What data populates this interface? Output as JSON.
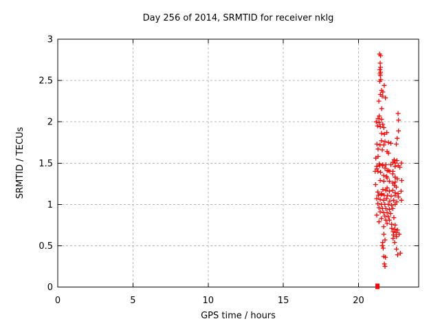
{
  "chart_data": {
    "type": "scatter",
    "title": "Day 256 of 2014, SRMTID for receiver nklg",
    "xlabel": "GPS time / hours",
    "ylabel": "SRMTID / TECUs",
    "xlim": [
      0,
      24
    ],
    "ylim": [
      0,
      3
    ],
    "xticks": [
      0,
      5,
      10,
      15,
      20
    ],
    "yticks": [
      0,
      0.5,
      1,
      1.5,
      2,
      2.5,
      3
    ],
    "grid": true,
    "legend_position": "none",
    "colors": {
      "marker": "#ff0000",
      "border": "#000000",
      "grid": "#b4b4b4",
      "background": "#ffffff",
      "text": "#000000"
    },
    "series": [
      {
        "name": "srmtid-points",
        "marker": "plus",
        "color": "#ff0000",
        "points": [
          [
            21.4,
            2.82
          ],
          [
            21.47,
            2.8
          ],
          [
            21.44,
            2.71
          ],
          [
            21.46,
            2.66
          ],
          [
            21.42,
            2.63
          ],
          [
            21.46,
            2.6
          ],
          [
            21.43,
            2.58
          ],
          [
            21.45,
            2.56
          ],
          [
            21.48,
            2.51
          ],
          [
            21.41,
            2.49
          ],
          [
            21.71,
            2.44
          ],
          [
            21.53,
            2.38
          ],
          [
            21.62,
            2.36
          ],
          [
            21.45,
            2.33
          ],
          [
            21.58,
            2.31
          ],
          [
            21.79,
            2.29
          ],
          [
            21.35,
            2.25
          ],
          [
            21.54,
            2.16
          ],
          [
            22.63,
            2.1
          ],
          [
            21.38,
            2.07
          ],
          [
            21.3,
            2.04
          ],
          [
            21.53,
            2.03
          ],
          [
            22.66,
            2.02
          ],
          [
            21.18,
            2.0
          ],
          [
            21.38,
            1.99
          ],
          [
            21.61,
            1.97
          ],
          [
            21.27,
            1.95
          ],
          [
            21.45,
            1.94
          ],
          [
            21.68,
            1.93
          ],
          [
            22.66,
            1.89
          ],
          [
            21.88,
            1.87
          ],
          [
            21.53,
            1.86
          ],
          [
            21.72,
            1.85
          ],
          [
            22.57,
            1.8
          ],
          [
            21.53,
            1.77
          ],
          [
            21.76,
            1.76
          ],
          [
            21.99,
            1.75
          ],
          [
            22.15,
            1.74
          ],
          [
            21.22,
            1.73
          ],
          [
            22.51,
            1.73
          ],
          [
            21.43,
            1.72
          ],
          [
            21.68,
            1.72
          ],
          [
            21.3,
            1.67
          ],
          [
            21.58,
            1.66
          ],
          [
            21.9,
            1.64
          ],
          [
            21.99,
            1.62
          ],
          [
            21.3,
            1.58
          ],
          [
            21.15,
            1.56
          ],
          [
            22.37,
            1.54
          ],
          [
            22.55,
            1.53
          ],
          [
            22.29,
            1.51
          ],
          [
            22.44,
            1.5
          ],
          [
            22.85,
            1.5
          ],
          [
            21.38,
            1.49
          ],
          [
            21.61,
            1.48
          ],
          [
            22.15,
            1.48
          ],
          [
            21.82,
            1.48
          ],
          [
            22.64,
            1.47
          ],
          [
            21.41,
            1.47
          ],
          [
            21.59,
            1.47
          ],
          [
            21.21,
            1.46
          ],
          [
            22.43,
            1.46
          ],
          [
            22.75,
            1.45
          ],
          [
            21.76,
            1.44
          ],
          [
            21.22,
            1.43
          ],
          [
            21.9,
            1.41
          ],
          [
            21.99,
            1.41
          ],
          [
            21.11,
            1.4
          ],
          [
            21.29,
            1.4
          ],
          [
            21.47,
            1.39
          ],
          [
            22.08,
            1.4
          ],
          [
            22.29,
            1.4
          ],
          [
            22.28,
            1.37
          ],
          [
            21.67,
            1.35
          ],
          [
            21.86,
            1.34
          ],
          [
            22.43,
            1.33
          ],
          [
            21.9,
            1.32
          ],
          [
            22.58,
            1.31
          ],
          [
            21.44,
            1.29
          ],
          [
            22.87,
            1.29
          ],
          [
            22.05,
            1.28
          ],
          [
            21.68,
            1.28
          ],
          [
            22.44,
            1.27
          ],
          [
            22.28,
            1.26
          ],
          [
            21.13,
            1.24
          ],
          [
            22.39,
            1.23
          ],
          [
            22.51,
            1.21
          ],
          [
            21.9,
            1.2
          ],
          [
            21.62,
            1.18
          ],
          [
            21.82,
            1.17
          ],
          [
            22.28,
            1.17
          ],
          [
            22.83,
            1.16
          ],
          [
            22.05,
            1.16
          ],
          [
            21.29,
            1.15
          ],
          [
            22.43,
            1.14
          ],
          [
            21.52,
            1.13
          ],
          [
            22.63,
            1.13
          ],
          [
            21.32,
            1.11
          ],
          [
            21.52,
            1.12
          ],
          [
            21.71,
            1.11
          ],
          [
            21.93,
            1.11
          ],
          [
            22.17,
            1.1
          ],
          [
            22.43,
            1.11
          ],
          [
            22.66,
            1.09
          ],
          [
            21.21,
            1.07
          ],
          [
            21.86,
            1.07
          ],
          [
            21.44,
            1.06
          ],
          [
            22.85,
            1.05
          ],
          [
            21.67,
            1.05
          ],
          [
            22.33,
            1.05
          ],
          [
            22.08,
            1.04
          ],
          [
            22.54,
            1.03
          ],
          [
            21.29,
            1.01
          ],
          [
            21.52,
            1.0
          ],
          [
            21.75,
            1.0
          ],
          [
            21.98,
            1.0
          ],
          [
            22.43,
            1.0
          ],
          [
            22.2,
            0.99
          ],
          [
            21.36,
            0.96
          ],
          [
            21.59,
            0.95
          ],
          [
            21.82,
            0.95
          ],
          [
            22.28,
            0.95
          ],
          [
            22.05,
            0.94
          ],
          [
            21.44,
            0.91
          ],
          [
            21.67,
            0.9
          ],
          [
            21.9,
            0.9
          ],
          [
            22.13,
            0.89
          ],
          [
            21.21,
            0.87
          ],
          [
            21.75,
            0.86
          ],
          [
            21.98,
            0.85
          ],
          [
            22.35,
            0.84
          ],
          [
            21.52,
            0.83
          ],
          [
            21.82,
            0.81
          ],
          [
            22.05,
            0.81
          ],
          [
            21.36,
            0.79
          ],
          [
            21.9,
            0.77
          ],
          [
            22.2,
            0.76
          ],
          [
            22.43,
            0.75
          ],
          [
            21.67,
            0.73
          ],
          [
            22.21,
            0.71
          ],
          [
            22.4,
            0.7
          ],
          [
            22.59,
            0.69
          ],
          [
            22.3,
            0.67
          ],
          [
            22.5,
            0.66
          ],
          [
            21.68,
            0.64
          ],
          [
            22.7,
            0.64
          ],
          [
            22.33,
            0.63
          ],
          [
            22.52,
            0.61
          ],
          [
            22.3,
            0.59
          ],
          [
            21.76,
            0.57
          ],
          [
            21.61,
            0.54
          ],
          [
            22.4,
            0.54
          ],
          [
            21.58,
            0.5
          ],
          [
            21.64,
            0.47
          ],
          [
            22.52,
            0.46
          ],
          [
            22.78,
            0.41
          ],
          [
            22.6,
            0.39
          ],
          [
            21.68,
            0.37
          ],
          [
            21.79,
            0.36
          ],
          [
            21.72,
            0.28
          ],
          [
            21.76,
            0.25
          ]
        ]
      }
    ],
    "axis_marker": {
      "shape": "filled-square",
      "color": "#ff0000",
      "x": 21.26,
      "y": 0
    }
  }
}
